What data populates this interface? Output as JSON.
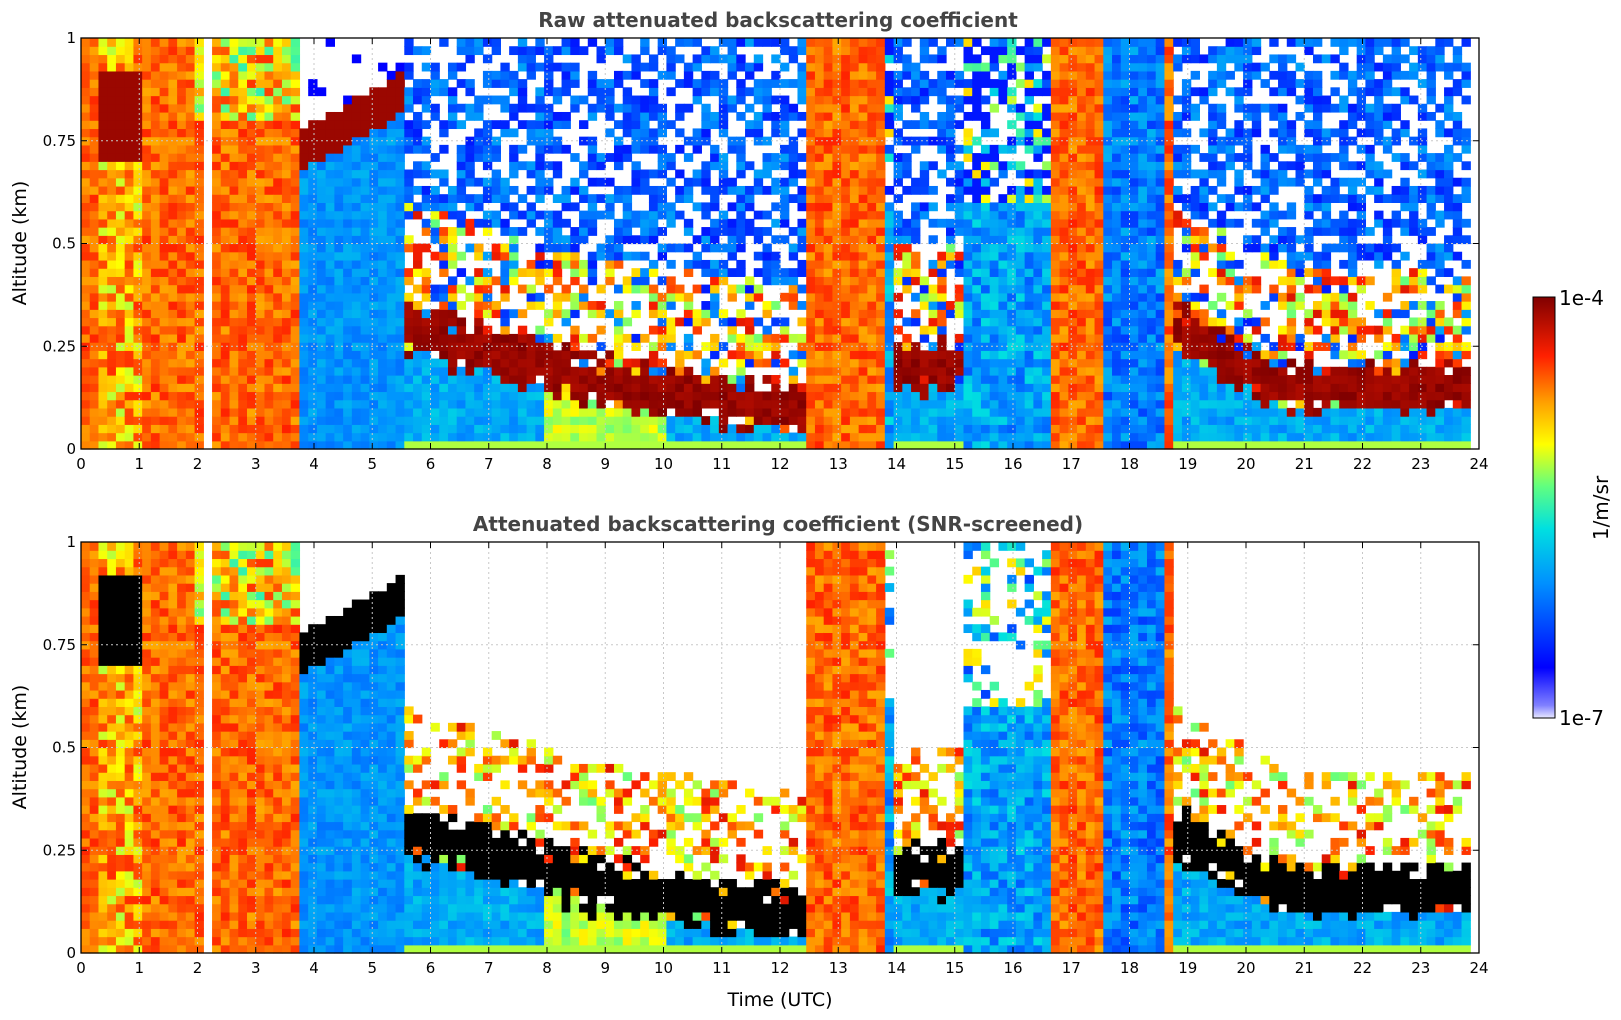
{
  "chart_data": [
    {
      "type": "heatmap",
      "title": "Raw attenuated backscattering coefficient",
      "xlabel": "",
      "ylabel": "Altitude (km)",
      "xlim": [
        0,
        24
      ],
      "ylim": [
        0,
        1
      ],
      "xticks": [
        "0",
        "1",
        "2",
        "3",
        "4",
        "5",
        "6",
        "7",
        "8",
        "9",
        "10",
        "11",
        "12",
        "13",
        "14",
        "15",
        "16",
        "17",
        "18",
        "19",
        "20",
        "21",
        "22",
        "23",
        "24"
      ],
      "yticks": [
        "0",
        "0.25",
        "0.5",
        "0.75",
        "1"
      ],
      "grid": true,
      "screened": false
    },
    {
      "type": "heatmap",
      "title": "Attenuated backscattering coefficient (SNR-screened)",
      "xlabel": "Time (UTC)",
      "ylabel": "Altitude (km)",
      "xlim": [
        0,
        24
      ],
      "ylim": [
        0,
        1
      ],
      "xticks": [
        "0",
        "1",
        "2",
        "3",
        "4",
        "5",
        "6",
        "7",
        "8",
        "9",
        "10",
        "11",
        "12",
        "13",
        "14",
        "15",
        "16",
        "17",
        "18",
        "19",
        "20",
        "21",
        "22",
        "23",
        "24"
      ],
      "yticks": [
        "0",
        "0.25",
        "0.5",
        "0.75",
        "1"
      ],
      "grid": true,
      "screened": true
    }
  ],
  "colorbar": {
    "label": "1/m/sr",
    "max_label": "1e-4",
    "min_label": "1e-7",
    "scale": "log",
    "colormap": [
      "#e8e8ff",
      "#0000ff",
      "#00a0ff",
      "#00e0e0",
      "#ffff00",
      "#ff8000",
      "#ff2000",
      "#800000"
    ]
  }
}
